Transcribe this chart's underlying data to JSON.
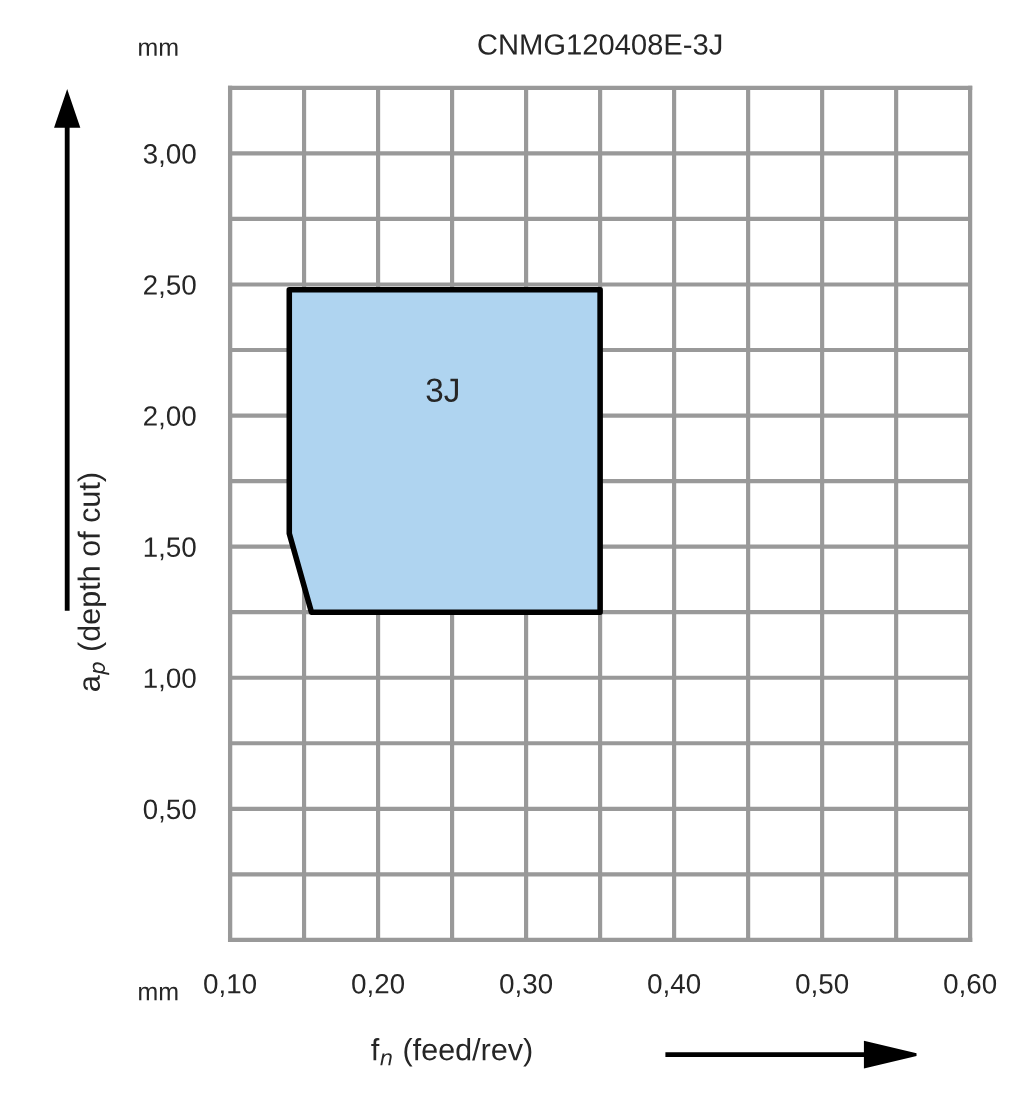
{
  "chart_data": {
    "type": "area",
    "title": "CNMG120408E-3J",
    "xlabel": "f$_{n}$ (feed/rev)",
    "ylabel": "a$_{p}$ (depth of cut)",
    "series": [
      {
        "color": "#afd4f0",
        "x": [
          0.14,
          0.35,
          0.35,
          0.155,
          0.14,
          0.14
        ],
        "values": [
          2.48,
          2.48,
          1.25,
          1.25,
          1.55,
          2.48
        ]
      }
    ],
    "xlim": [
      0.1,
      0.6
    ],
    "ylim": [
      0,
      3.25
    ],
    "xticks": [
      {
        "value": 0.1,
        "label": "0,10"
      },
      {
        "value": 0.15,
        "label": null
      },
      {
        "value": 0.2,
        "label": "0,20"
      },
      {
        "value": 0.25,
        "label": null
      },
      {
        "value": 0.3,
        "label": "0,30"
      },
      {
        "value": 0.35,
        "label": null
      },
      {
        "value": 0.4,
        "label": "0,40"
      },
      {
        "value": 0.45,
        "label": null
      },
      {
        "value": 0.5,
        "label": "0,50"
      },
      {
        "value": 0.55,
        "label": null
      },
      {
        "value": 0.6,
        "label": "0,60"
      }
    ],
    "yticks": [
      {
        "value": 0.25,
        "label": null
      },
      {
        "value": 0.5,
        "label": "0,50"
      },
      {
        "value": 0.75,
        "label": null
      },
      {
        "value": 1.0,
        "label": "1,00"
      },
      {
        "value": 1.25,
        "label": null
      },
      {
        "value": 1.5,
        "label": "1,50"
      },
      {
        "value": 1.75,
        "label": null
      },
      {
        "value": 2.0,
        "label": "2,00"
      },
      {
        "value": 2.25,
        "label": null
      },
      {
        "value": 2.5,
        "label": "2,50"
      },
      {
        "value": 2.75,
        "label": null
      },
      {
        "value": 3.0,
        "label": "3,00"
      }
    ],
    "grid": true,
    "legend": false,
    "annotations": [
      "3J",
      "mm",
      "mm"
    ]
  }
}
